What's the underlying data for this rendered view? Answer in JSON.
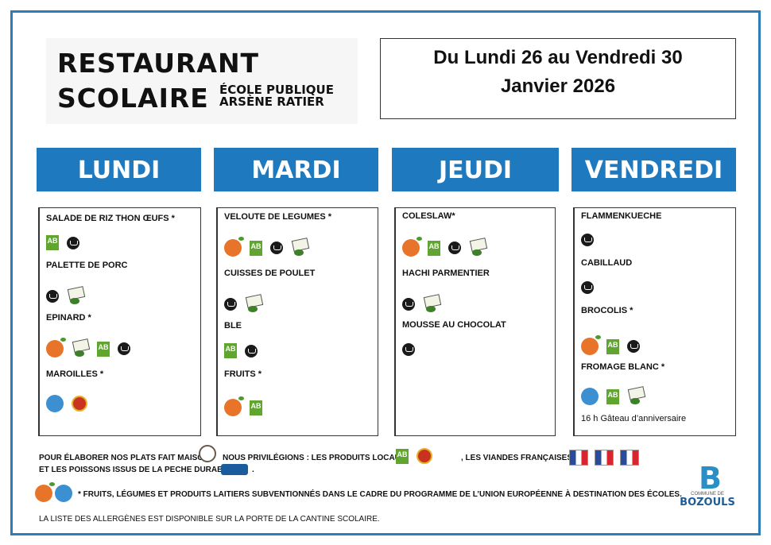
{
  "header": {
    "title_line1": "RESTAURANT",
    "title_line2": "SCOLAIRE",
    "school_line1": "ÉCOLE PUBLIQUE",
    "school_line2": "ARSÈNE RATIER",
    "date_line1": "Du Lundi 26 au Vendredi 30",
    "date_line2": "Janvier 2026"
  },
  "days": [
    {
      "name": "LUNDI",
      "dishes": [
        {
          "label": "SALADE DE RIZ THON ŒUFS *",
          "badges": [
            "bio-ab",
            "fait-maison"
          ]
        },
        {
          "label": "PALETTE DE PORC",
          "badges": [
            "fait-maison",
            "produit-local"
          ]
        },
        {
          "label": "EPINARD *",
          "badges": [
            "fruits-legumes-ecole",
            "produit-local",
            "bio-ab",
            "fait-maison"
          ]
        },
        {
          "label": "MAROILLES *",
          "badges": [
            "lait-ecole",
            "aop"
          ]
        }
      ]
    },
    {
      "name": "MARDI",
      "dishes": [
        {
          "label": "VELOUTE DE LEGUMES *",
          "badges": [
            "fruits-legumes-ecole",
            "bio-ab",
            "fait-maison",
            "produit-local"
          ]
        },
        {
          "label": "CUISSES DE POULET",
          "badges": [
            "fait-maison",
            "produit-local"
          ]
        },
        {
          "label": "BLE",
          "badges": [
            "bio-ab",
            "fait-maison"
          ]
        },
        {
          "label": "FRUITS *",
          "badges": [
            "fruits-legumes-ecole",
            "bio-ab"
          ]
        }
      ]
    },
    {
      "name": "JEUDI",
      "dishes": [
        {
          "label": "COLESLAW*",
          "badges": [
            "fruits-legumes-ecole",
            "bio-ab",
            "fait-maison",
            "produit-local"
          ]
        },
        {
          "label": "HACHI PARMENTIER",
          "badges": [
            "fait-maison",
            "produit-local"
          ]
        },
        {
          "label": "MOUSSE AU CHOCOLAT",
          "badges": [
            "fait-maison"
          ]
        }
      ]
    },
    {
      "name": "VENDREDI",
      "dishes": [
        {
          "label": "FLAMMENKUECHE",
          "badges": [
            "fait-maison"
          ]
        },
        {
          "label": "CABILLAUD",
          "badges": [
            "fait-maison"
          ]
        },
        {
          "label": "BROCOLIS *",
          "badges": [
            "fruits-legumes-ecole",
            "bio-ab",
            "fait-maison"
          ]
        },
        {
          "label": "FROMAGE BLANC *",
          "badges": [
            "lait-ecole",
            "bio-ab",
            "produit-local"
          ]
        }
      ],
      "note": "16 h Gâteau d’anniversaire"
    }
  ],
  "footer": {
    "line1a": "POUR ÉLABORER NOS PLATS FAIT MAISON",
    "line1b": "NOUS PRIVILÉGIONS : LES PRODUITS LOCAUX",
    "line1c": ", LES VIANDES FRANÇAISES",
    "line2": "ET LES POISSONS ISSUS DE LA PECHE DURABLE",
    "line2_end": ".",
    "subsidy": "* FRUITS, LÉGUMES ET PRODUITS LAITIERS SUBVENTIONNÉS DANS LE CADRE DU PROGRAMME DE L’UNION EUROPÉENNE À DESTINATION DES ÉCOLES.",
    "allergens": "LA LISTE DES ALLERGÈNES EST DISPONIBLE SUR LA PORTE DE LA CANTINE SCOLAIRE.",
    "commune_small": "COMMUNE DE",
    "commune_name": "BOZOULS"
  },
  "colors": {
    "header_blue": "#1f79bf",
    "frame_blue": "#2e7db8",
    "bio_green": "#5fa52f"
  }
}
